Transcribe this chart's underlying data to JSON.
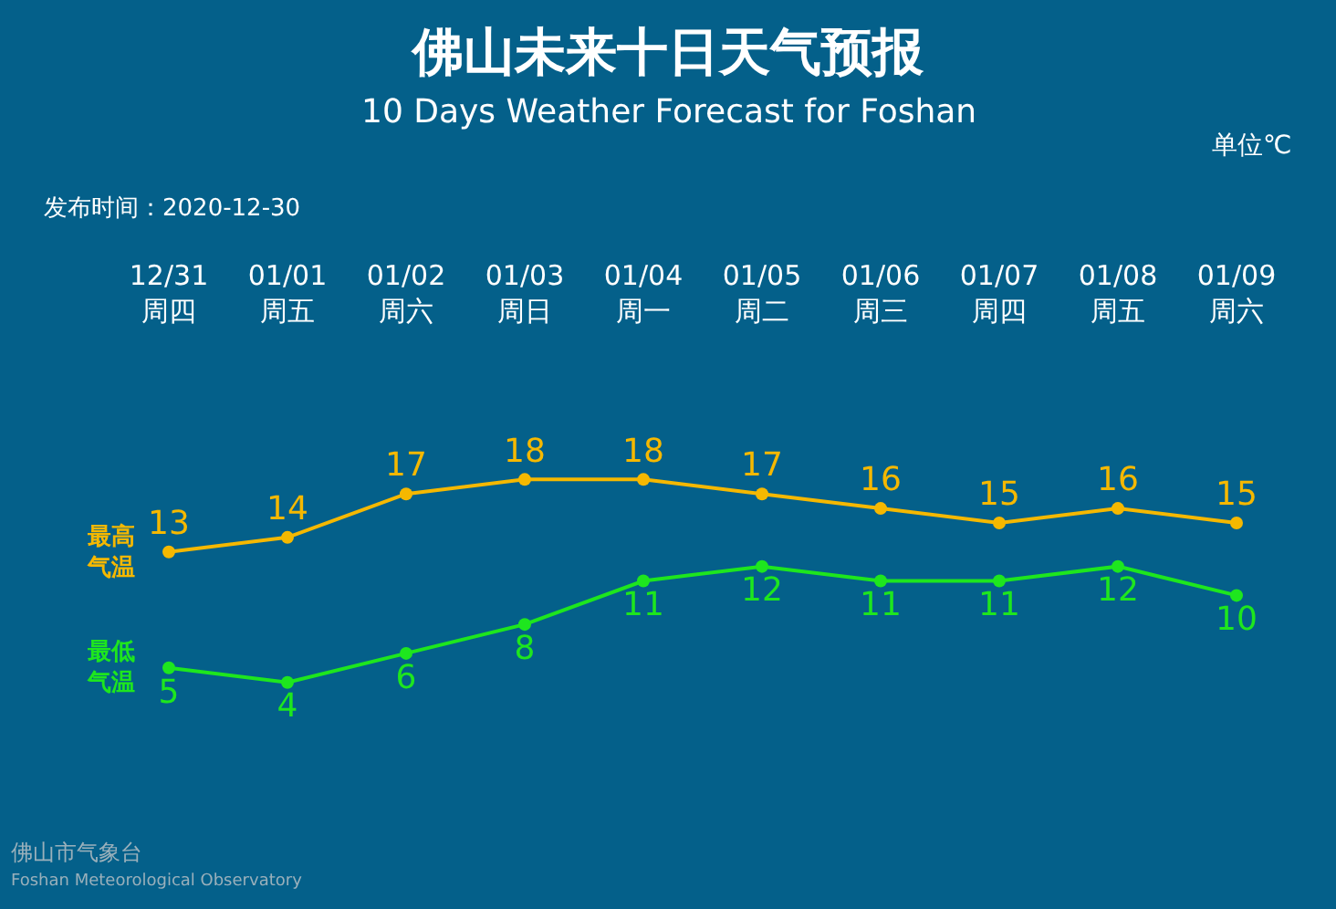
{
  "chart_data": {
    "type": "line",
    "title": "佛山未来十日天气预报",
    "subtitle": "10 Days Weather Forecast for Foshan",
    "categories": [
      "12/31\n周四",
      "01/01\n周五",
      "01/02\n周六",
      "01/03\n周日",
      "01/04\n周一",
      "01/05\n周二",
      "01/06\n周三",
      "01/07\n周四",
      "01/08\n周五",
      "01/09\n周六"
    ],
    "series": [
      {
        "name": "最高气温",
        "color": "#f5b800",
        "values": [
          13,
          14,
          17,
          18,
          18,
          17,
          16,
          15,
          16,
          15
        ]
      },
      {
        "name": "最低气温",
        "color": "#1ee61e",
        "values": [
          5,
          4,
          6,
          8,
          11,
          12,
          11,
          11,
          12,
          10
        ]
      }
    ],
    "data_labels": true,
    "marker": "circle",
    "line_style": "solid",
    "grid": false,
    "legend": false,
    "annotations": [
      "单位℃",
      "发布时间：2020-12-30",
      "佛山市气象台",
      "Foshan Meteorological Observatory"
    ]
  }
}
